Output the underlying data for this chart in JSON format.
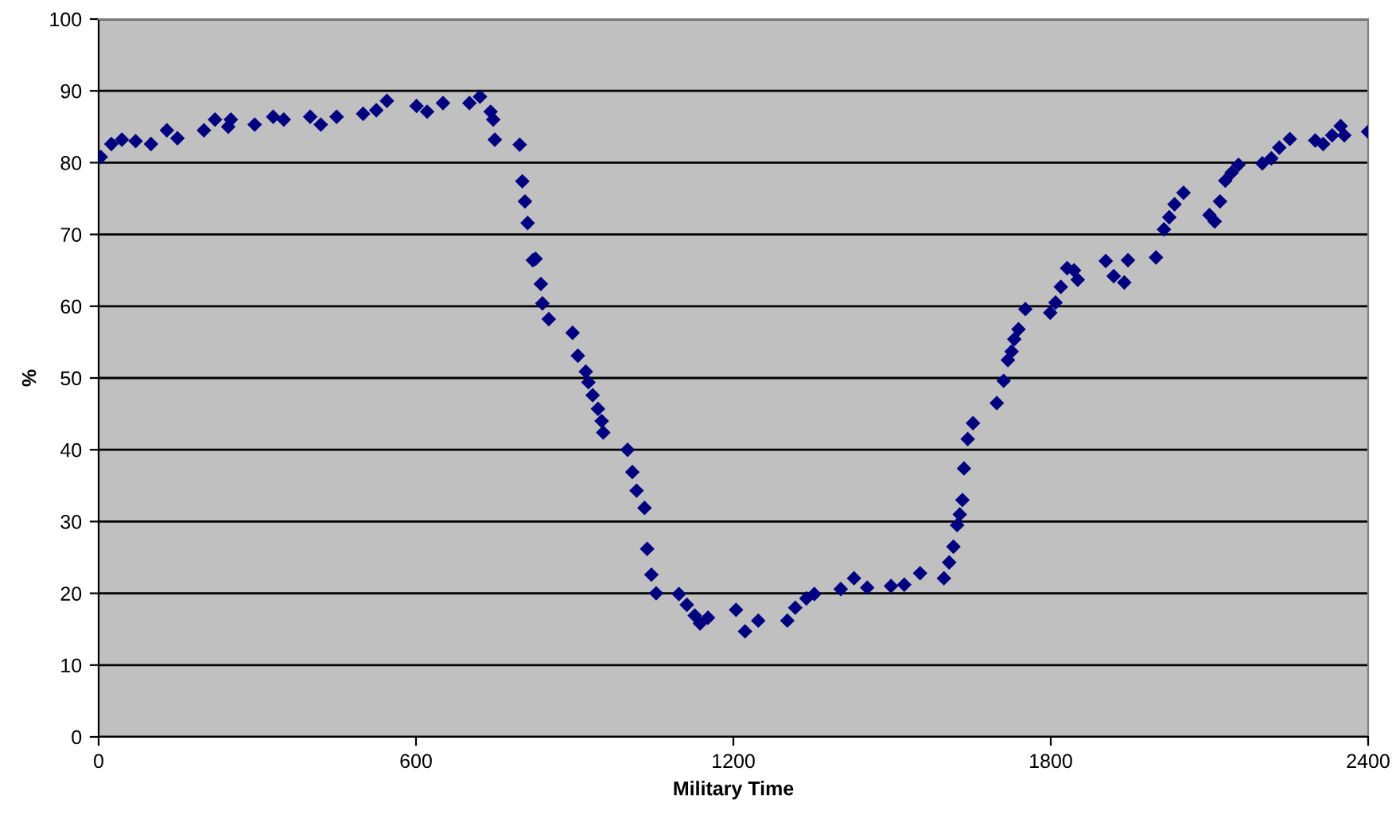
{
  "chart_data": {
    "type": "scatter",
    "xlabel": "Military Time",
    "ylabel": "%",
    "xlim": [
      0,
      2400
    ],
    "ylim": [
      0,
      100
    ],
    "xticks": [
      0,
      600,
      1200,
      1800,
      2400
    ],
    "yticks": [
      0,
      10,
      20,
      30,
      40,
      50,
      60,
      70,
      80,
      90,
      100
    ],
    "grid": "y",
    "marker": "diamond",
    "series": [
      {
        "color": "#000080",
        "x": [
          4,
          24,
          44,
          70,
          99,
          129,
          149,
          199,
          220,
          245,
          250,
          295,
          330,
          350,
          400,
          420,
          450,
          500,
          525,
          545,
          601,
          621,
          651,
          701,
          721,
          741,
          746,
          749,
          796,
          801,
          806,
          811,
          821,
          826,
          836,
          839,
          851,
          896,
          906,
          921,
          926,
          934,
          944,
          951,
          954,
          1000,
          1009,
          1017,
          1032,
          1037,
          1045,
          1054,
          1097,
          1112,
          1127,
          1137,
          1152,
          1205,
          1222,
          1247,
          1302,
          1317,
          1338,
          1353,
          1403,
          1428,
          1453,
          1498,
          1523,
          1553,
          1598,
          1608,
          1616,
          1623,
          1628,
          1633,
          1636,
          1643,
          1653,
          1698,
          1711,
          1719,
          1726,
          1731,
          1739,
          1752,
          1799,
          1809,
          1819,
          1831,
          1844,
          1851,
          1904,
          1919,
          1939,
          1946,
          1999,
          2014,
          2024,
          2034,
          2051,
          2100,
          2110,
          2120,
          2130,
          2142,
          2155,
          2200,
          2217,
          2232,
          2252,
          2300,
          2315,
          2332,
          2348,
          2355,
          2400
        ],
        "values": [
          80.8,
          82.6,
          83.2,
          83,
          82.6,
          84.5,
          83.4,
          84.5,
          86,
          85,
          86,
          85.3,
          86.4,
          86,
          86.4,
          85.3,
          86.4,
          86.8,
          87.3,
          88.6,
          87.9,
          87.1,
          88.3,
          88.3,
          89.2,
          87.1,
          86,
          83.2,
          82.5,
          77.4,
          74.6,
          71.6,
          66.4,
          66.6,
          63.1,
          60.4,
          58.2,
          56.3,
          53.1,
          50.9,
          49.4,
          47.6,
          45.7,
          44,
          42.4,
          40,
          36.9,
          34.3,
          31.9,
          26.2,
          22.6,
          20,
          19.9,
          18.4,
          16.9,
          15.8,
          16.6,
          17.7,
          14.7,
          16.2,
          16.2,
          18,
          19.3,
          19.9,
          20.6,
          22.1,
          20.8,
          21,
          21.2,
          22.8,
          22.1,
          24.3,
          26.5,
          29.5,
          31,
          33,
          37.4,
          41.5,
          43.7,
          46.5,
          49.6,
          52.5,
          53.7,
          55.4,
          56.8,
          59.6,
          59.1,
          60.5,
          62.7,
          65.3,
          65,
          63.7,
          66.3,
          64.2,
          63.3,
          66.4,
          66.8,
          70.7,
          72.4,
          74.2,
          75.8,
          72.7,
          71.8,
          74.6,
          77.5,
          78.6,
          79.7,
          79.9,
          80.6,
          82.1,
          83.3,
          83.1,
          82.6,
          83.8,
          85.1,
          83.8,
          84.3
        ]
      }
    ]
  }
}
